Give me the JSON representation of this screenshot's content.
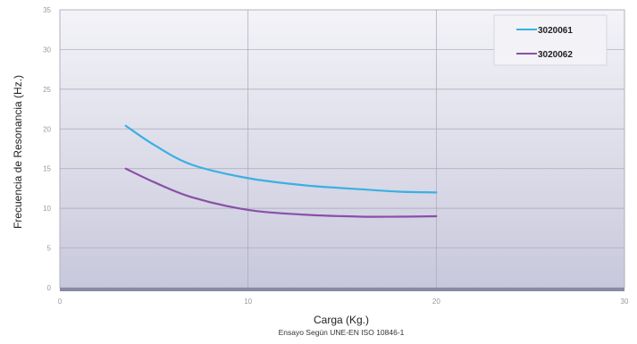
{
  "chart_data": {
    "type": "line",
    "title": "",
    "xlabel": "Carga (Kg.)",
    "ylabel": "Frecuencia de Resonancia (Hz.)",
    "caption": "Ensayo Según UNE-EN ISO 10846-1",
    "xlim": [
      0,
      30
    ],
    "ylim": [
      0,
      35
    ],
    "xticks": [
      0,
      10,
      20,
      30
    ],
    "yticks": [
      0,
      5,
      10,
      15,
      20,
      25,
      30,
      35
    ],
    "grid": true,
    "legend_position": "top-right",
    "background_gradient": [
      "#f3f3f8",
      "#c8c8dc"
    ],
    "series": [
      {
        "name": "3020061",
        "color": "#3ab0e2",
        "x": [
          3.5,
          5,
          7,
          10,
          13,
          16,
          18,
          20
        ],
        "y": [
          20.4,
          18,
          15.5,
          13.8,
          12.9,
          12.4,
          12.1,
          12.0
        ]
      },
      {
        "name": "3020062",
        "color": "#8a4fa8",
        "x": [
          3.5,
          5,
          7,
          10,
          13,
          16,
          18,
          20
        ],
        "y": [
          15.0,
          13.3,
          11.4,
          9.8,
          9.2,
          8.95,
          8.95,
          9.0
        ]
      }
    ]
  }
}
